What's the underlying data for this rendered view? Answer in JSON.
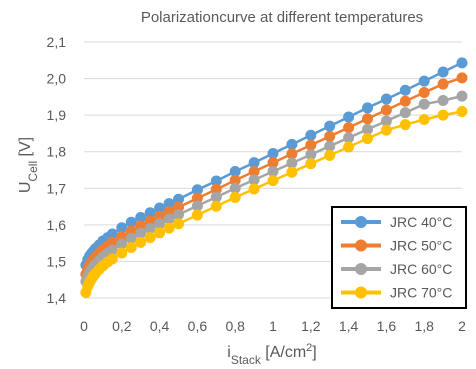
{
  "chart_data": {
    "type": "line",
    "title": "Polarizationcurve at different temperatures",
    "xlabel": {
      "main": "i",
      "sub": "Stack",
      "unit": " [A/cm",
      "sup": "2",
      "close": "]"
    },
    "ylabel": {
      "main": "U",
      "sub": "Cell",
      "unit": " [V]"
    },
    "xlim": [
      0,
      2
    ],
    "ylim": [
      1.4,
      2.1
    ],
    "x_ticks": [
      "0",
      "0,2",
      "0,4",
      "0,6",
      "0,8",
      "1",
      "1,2",
      "1,4",
      "1,6",
      "1,8",
      "2"
    ],
    "y_ticks": [
      "1,4",
      "1,5",
      "1,6",
      "1,7",
      "1,8",
      "1,9",
      "2,0",
      "2,1"
    ],
    "grid": "horizontal",
    "legend_position": "bottom-right",
    "x": [
      0.01,
      0.02,
      0.03,
      0.04,
      0.05,
      0.06,
      0.08,
      0.1,
      0.125,
      0.15,
      0.2,
      0.25,
      0.3,
      0.35,
      0.4,
      0.45,
      0.5,
      0.6,
      0.7,
      0.8,
      0.9,
      1.0,
      1.1,
      1.2,
      1.3,
      1.4,
      1.5,
      1.6,
      1.7,
      1.8,
      1.9,
      2.0
    ],
    "series": [
      {
        "name": "JRC 40°C",
        "color": "#5B9BD5",
        "values": [
          1.49,
          1.505,
          1.515,
          1.522,
          1.528,
          1.535,
          1.545,
          1.556,
          1.565,
          1.575,
          1.592,
          1.607,
          1.62,
          1.633,
          1.646,
          1.658,
          1.67,
          1.696,
          1.72,
          1.746,
          1.77,
          1.795,
          1.82,
          1.845,
          1.87,
          1.895,
          1.92,
          1.944,
          1.968,
          1.993,
          2.018,
          2.043
        ]
      },
      {
        "name": "JRC 50°C",
        "color": "#ED7D31",
        "values": [
          1.465,
          1.48,
          1.49,
          1.498,
          1.505,
          1.512,
          1.522,
          1.532,
          1.542,
          1.552,
          1.568,
          1.583,
          1.597,
          1.61,
          1.623,
          1.636,
          1.648,
          1.673,
          1.697,
          1.722,
          1.746,
          1.77,
          1.794,
          1.818,
          1.842,
          1.866,
          1.89,
          1.914,
          1.938,
          1.962,
          1.985,
          2.002
        ]
      },
      {
        "name": "JRC 60°C",
        "color": "#A5A5A5",
        "values": [
          1.445,
          1.46,
          1.47,
          1.478,
          1.485,
          1.492,
          1.502,
          1.512,
          1.522,
          1.531,
          1.548,
          1.563,
          1.577,
          1.59,
          1.603,
          1.616,
          1.628,
          1.652,
          1.676,
          1.7,
          1.723,
          1.746,
          1.769,
          1.792,
          1.815,
          1.838,
          1.861,
          1.884,
          1.907,
          1.93,
          1.94,
          1.952
        ]
      },
      {
        "name": "JRC 70°C",
        "color": "#FFC000",
        "values": [
          1.415,
          1.432,
          1.443,
          1.452,
          1.46,
          1.467,
          1.478,
          1.488,
          1.498,
          1.507,
          1.523,
          1.538,
          1.552,
          1.565,
          1.578,
          1.591,
          1.603,
          1.627,
          1.651,
          1.675,
          1.698,
          1.721,
          1.744,
          1.767,
          1.79,
          1.813,
          1.836,
          1.859,
          1.874,
          1.888,
          1.9,
          1.91
        ]
      }
    ]
  }
}
